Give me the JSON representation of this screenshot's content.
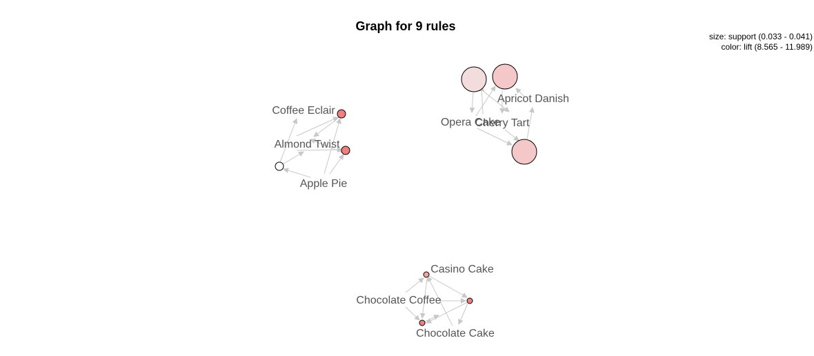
{
  "title": "Graph for 9 rules",
  "legend": {
    "size": "size: support (0.033 - 0.041)",
    "color": "color: lift (8.565 - 11.989)"
  },
  "colors": {
    "edge": "#c8c8c8",
    "label": "#555555",
    "node_stroke": "#000000"
  },
  "items": [
    {
      "id": "coffee-eclair",
      "label": "Coffee Eclair"
    },
    {
      "id": "almond-twist",
      "label": "Almond Twist"
    },
    {
      "id": "apple-pie",
      "label": "Apple Pie"
    },
    {
      "id": "apricot-danish",
      "label": "Apricot Danish"
    },
    {
      "id": "opera-cake",
      "label": "Opera Cake"
    },
    {
      "id": "cherry-tart",
      "label": "Cherry Tart"
    },
    {
      "id": "casino-cake",
      "label": "Casino Cake"
    },
    {
      "id": "chocolate-coffee",
      "label": "Chocolate Coffee"
    },
    {
      "id": "chocolate-cake",
      "label": "Chocolate Cake"
    }
  ],
  "rules": [
    {
      "id": "rule-1",
      "fill": "#f08080"
    },
    {
      "id": "rule-2",
      "fill": "#f08080"
    },
    {
      "id": "rule-3",
      "fill": "#ffffff"
    },
    {
      "id": "rule-4",
      "fill": "#f3dcdc"
    },
    {
      "id": "rule-5",
      "fill": "#f4c8c8"
    },
    {
      "id": "rule-6",
      "fill": "#f4c8c8"
    },
    {
      "id": "rule-7",
      "fill": "#f3a4a4"
    },
    {
      "id": "rule-8",
      "fill": "#f08080"
    },
    {
      "id": "rule-9",
      "fill": "#f08080"
    }
  ]
}
